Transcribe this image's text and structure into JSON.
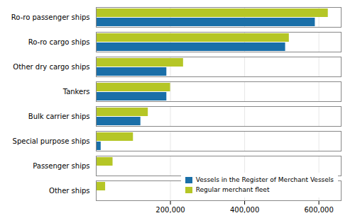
{
  "chart_data": {
    "type": "bar",
    "orientation": "horizontal",
    "categories": [
      "Ro-ro passenger ships",
      "Ro-ro cargo ships",
      "Other dry cargo ships",
      "Tankers",
      "Bulk carrier ships",
      "Special purpose ships",
      "Passenger ships",
      "Other ships"
    ],
    "series": [
      {
        "name": "Vessels in the Register of Merchant Vessels",
        "color": "#1a6fa8",
        "values": [
          590000,
          510000,
          190000,
          190000,
          120000,
          13000,
          2000,
          0
        ]
      },
      {
        "name": "Regular merchant fleet",
        "color": "#b5c626",
        "values": [
          625000,
          520000,
          235000,
          200000,
          140000,
          100000,
          45000,
          25000
        ]
      }
    ],
    "xlim": [
      0,
      660000
    ],
    "xticks": [
      {
        "value": 200000,
        "label": "200,000"
      },
      {
        "value": 400000,
        "label": "400,000"
      },
      {
        "value": 600000,
        "label": "600,000"
      }
    ],
    "grid": true,
    "legend": "lower right"
  }
}
